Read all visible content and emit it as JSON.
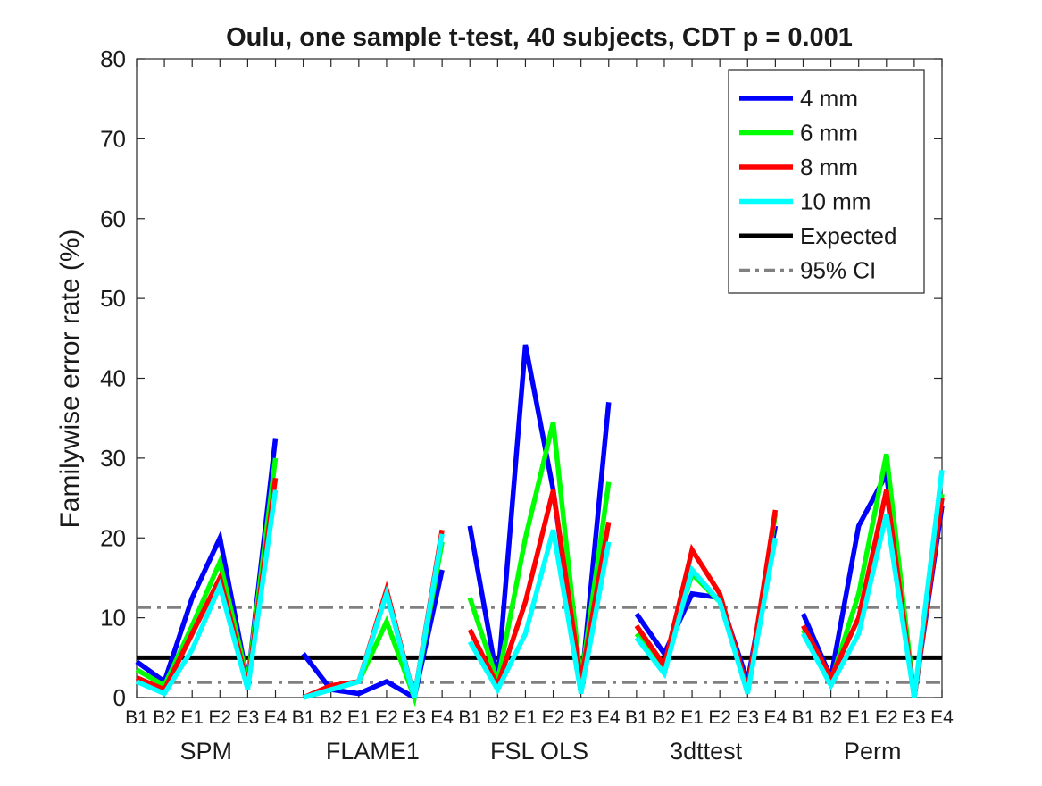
{
  "chart_data": {
    "type": "line",
    "title": "Oulu, one sample t-test, 40 subjects, CDT p = 0.001",
    "ylabel": "Familywise error rate (%)",
    "xlabel": "",
    "ylim": [
      0,
      80
    ],
    "yticks": [
      0,
      10,
      20,
      30,
      40,
      50,
      60,
      70,
      80
    ],
    "tick_labels": [
      "B1",
      "B2",
      "E1",
      "E2",
      "E3",
      "E4"
    ],
    "groups": [
      "SPM",
      "FLAME1",
      "FSL OLS",
      "3dttest",
      "Perm"
    ],
    "grid": false,
    "legend_placement": "top-right",
    "series": [
      {
        "name": "4 mm",
        "color": "#0000ff",
        "values": [
          [
            4.5,
            2.0,
            12.5,
            20.0,
            2.0,
            32.5
          ],
          [
            5.5,
            1.0,
            0.5,
            2.0,
            0.0,
            16.0
          ],
          [
            21.5,
            2.0,
            44.2,
            26.0,
            1.0,
            37.0
          ],
          [
            10.5,
            5.5,
            13.0,
            12.5,
            2.0,
            21.5
          ],
          [
            10.5,
            2.5,
            21.5,
            28.0,
            0.0,
            24.0
          ]
        ]
      },
      {
        "name": "6 mm",
        "color": "#00ff00",
        "values": [
          [
            3.5,
            1.5,
            9.0,
            17.0,
            2.0,
            30.0
          ],
          [
            0.0,
            1.0,
            2.0,
            9.5,
            0.0,
            19.5
          ],
          [
            12.5,
            2.0,
            20.0,
            34.5,
            2.0,
            27.0
          ],
          [
            8.0,
            4.0,
            15.5,
            12.0,
            1.0,
            23.0
          ],
          [
            8.5,
            2.0,
            13.0,
            30.5,
            0.0,
            25.5
          ]
        ]
      },
      {
        "name": "8 mm",
        "color": "#ff0000",
        "values": [
          [
            2.5,
            1.0,
            8.0,
            15.0,
            1.5,
            27.5
          ],
          [
            0.0,
            1.5,
            2.0,
            13.5,
            0.0,
            21.0
          ],
          [
            8.5,
            1.5,
            12.0,
            26.0,
            2.0,
            22.0
          ],
          [
            9.0,
            4.0,
            18.5,
            13.0,
            1.0,
            23.5
          ],
          [
            9.0,
            2.5,
            10.0,
            26.0,
            0.0,
            25.0
          ]
        ]
      },
      {
        "name": "10 mm",
        "color": "#00ffff",
        "values": [
          [
            2.0,
            0.5,
            6.0,
            14.0,
            1.0,
            26.0
          ],
          [
            0.0,
            1.0,
            2.0,
            13.0,
            0.0,
            20.5
          ],
          [
            7.0,
            1.0,
            8.0,
            21.0,
            0.5,
            19.5
          ],
          [
            7.5,
            3.0,
            16.0,
            12.0,
            0.5,
            20.0
          ],
          [
            8.0,
            1.5,
            8.0,
            23.0,
            0.0,
            28.5
          ]
        ]
      }
    ],
    "reference_lines": [
      {
        "name": "Expected",
        "value": 5,
        "color": "#000000",
        "style": "solid"
      },
      {
        "name": "95% CI",
        "values": [
          1.9,
          11.3
        ],
        "color": "#808080",
        "style": "dash-dot"
      }
    ]
  }
}
